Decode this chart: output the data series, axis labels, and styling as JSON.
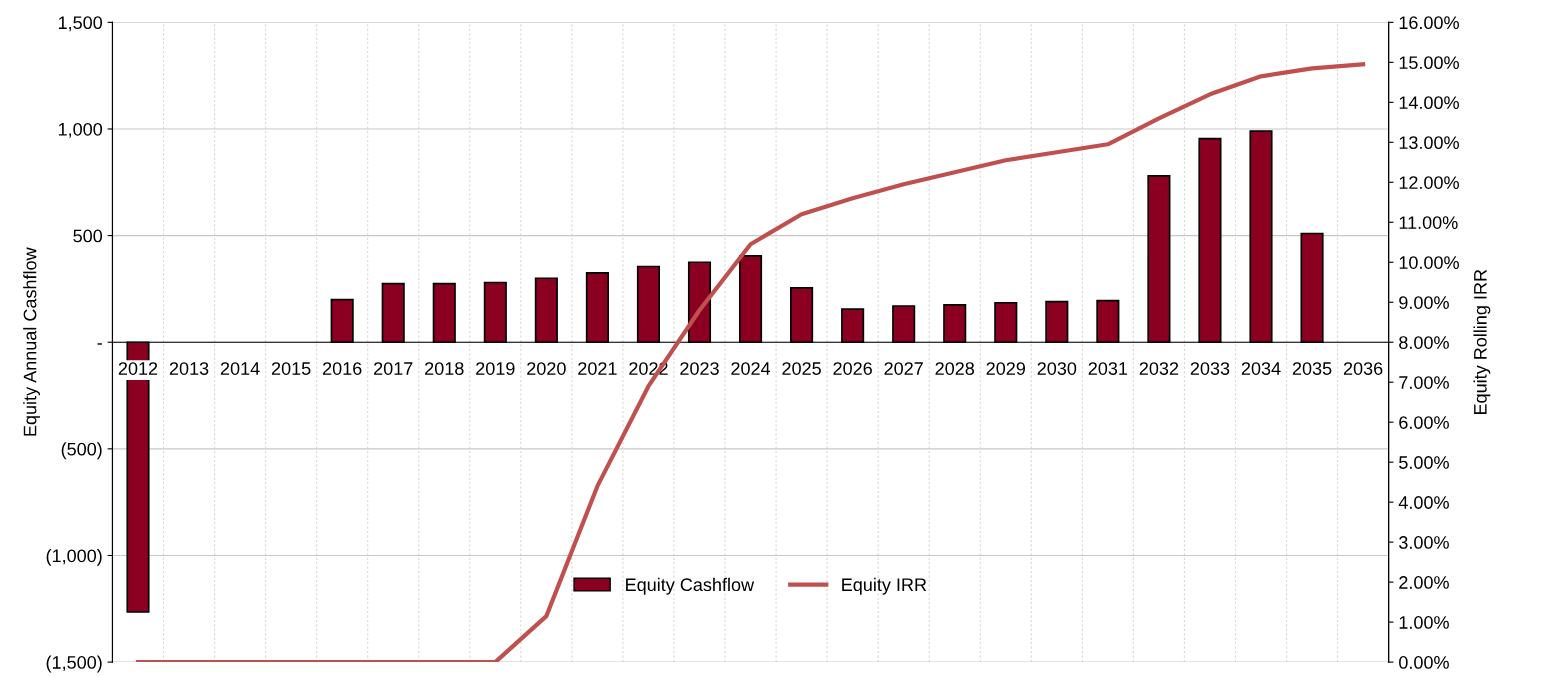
{
  "chart_data": {
    "type": "bar",
    "categories": [
      "2012",
      "2013",
      "2014",
      "2015",
      "2016",
      "2017",
      "2018",
      "2019",
      "2020",
      "2021",
      "2022",
      "2023",
      "2024",
      "2025",
      "2026",
      "2027",
      "2028",
      "2029",
      "2030",
      "2031",
      "2032",
      "2033",
      "2034",
      "2035",
      "2036"
    ],
    "series": [
      {
        "name": "Equity Cashflow",
        "color": "#8b0020",
        "values": [
          -1265,
          0,
          0,
          0,
          200,
          275,
          275,
          280,
          300,
          325,
          355,
          375,
          405,
          255,
          155,
          170,
          175,
          185,
          190,
          195,
          780,
          955,
          990,
          510,
          0
        ]
      },
      {
        "name": "Equity IRR",
        "type": "line",
        "axis": "y2",
        "color": "#c0504d",
        "values": [
          0,
          0,
          0,
          0,
          0,
          0,
          0,
          0,
          1.15,
          4.4,
          6.9,
          8.8,
          10.45,
          11.2,
          11.6,
          11.95,
          12.25,
          12.55,
          12.75,
          12.95,
          13.6,
          14.2,
          14.65,
          14.85,
          14.95
        ]
      }
    ],
    "ylabel": "Equity Annual Cashflow",
    "y2label": "Equity Rolling IRR",
    "ylim": [
      -1500,
      1500
    ],
    "yticks": [
      {
        "value": -1500,
        "label": "(1,500)"
      },
      {
        "value": -1000,
        "label": "(1,000)"
      },
      {
        "value": -500,
        "label": "(500)"
      },
      {
        "value": 0,
        "label": "-"
      },
      {
        "value": 500,
        "label": "500"
      },
      {
        "value": 1000,
        "label": "1,000"
      },
      {
        "value": 1500,
        "label": "1,500"
      }
    ],
    "y2lim": [
      0,
      16
    ],
    "y2ticks": [
      {
        "value": 0,
        "label": "0.00%"
      },
      {
        "value": 1,
        "label": "1.00%"
      },
      {
        "value": 2,
        "label": "2.00%"
      },
      {
        "value": 3,
        "label": "3.00%"
      },
      {
        "value": 4,
        "label": "4.00%"
      },
      {
        "value": 5,
        "label": "5.00%"
      },
      {
        "value": 6,
        "label": "6.00%"
      },
      {
        "value": 7,
        "label": "7.00%"
      },
      {
        "value": 8,
        "label": "8.00%"
      },
      {
        "value": 9,
        "label": "9.00%"
      },
      {
        "value": 10,
        "label": "10.00%"
      },
      {
        "value": 11,
        "label": "11.00%"
      },
      {
        "value": 12,
        "label": "12.00%"
      },
      {
        "value": 13,
        "label": "13.00%"
      },
      {
        "value": 14,
        "label": "14.00%"
      },
      {
        "value": 15,
        "label": "15.00%"
      },
      {
        "value": 16,
        "label": "16.00%"
      }
    ],
    "grid": true,
    "legend": "bottom",
    "marker": "none",
    "line_style": "solid"
  }
}
